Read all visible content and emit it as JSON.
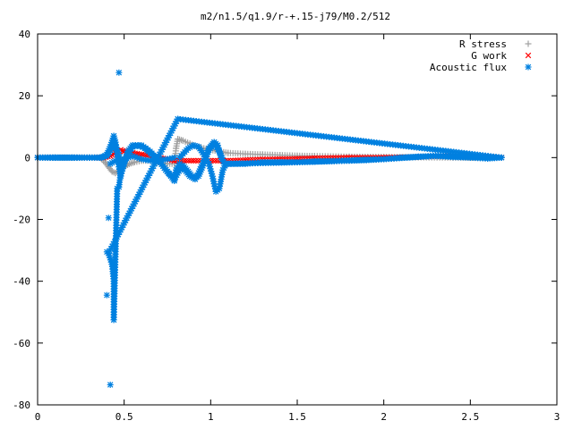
{
  "chart_data": {
    "type": "scatter",
    "title": "m2/n1.5/q1.9/r-+.15-j79/M0.2/512",
    "xlabel": "",
    "ylabel": "",
    "xlim": [
      0,
      3
    ],
    "ylim": [
      -80,
      40
    ],
    "x_ticks": [
      "0",
      "0.5",
      "1",
      "1.5",
      "2",
      "2.5",
      "3"
    ],
    "y_ticks": [
      "40",
      "20",
      "0",
      "-20",
      "-40",
      "-60",
      "-80"
    ],
    "legend_position": "top-right",
    "grid": false,
    "series": [
      {
        "name": "R stress",
        "color": "#a0a0a0",
        "marker": "plus",
        "points": [
          [
            0.0,
            0
          ],
          [
            0.1,
            0
          ],
          [
            0.2,
            0
          ],
          [
            0.3,
            0
          ],
          [
            0.36,
            0
          ],
          [
            0.39,
            -1.5
          ],
          [
            0.41,
            -3
          ],
          [
            0.43,
            -4.5
          ],
          [
            0.45,
            -5
          ],
          [
            0.48,
            -4
          ],
          [
            0.5,
            -3
          ],
          [
            0.53,
            -2
          ],
          [
            0.56,
            -1.5
          ],
          [
            0.6,
            -1
          ],
          [
            0.65,
            -1
          ],
          [
            0.7,
            -1.5
          ],
          [
            0.75,
            -2
          ],
          [
            0.79,
            -2
          ],
          [
            0.8,
            3
          ],
          [
            0.81,
            6
          ],
          [
            0.84,
            5.5
          ],
          [
            0.88,
            4.5
          ],
          [
            0.92,
            3.5
          ],
          [
            0.96,
            3
          ],
          [
            1.0,
            2.5
          ],
          [
            1.05,
            2
          ],
          [
            1.1,
            1.5
          ],
          [
            1.2,
            1.2
          ],
          [
            1.3,
            1
          ],
          [
            1.4,
            0.8
          ],
          [
            1.5,
            0.6
          ],
          [
            1.6,
            0.5
          ],
          [
            1.8,
            0.3
          ],
          [
            2.0,
            0.2
          ],
          [
            2.2,
            0.1
          ],
          [
            2.4,
            0
          ],
          [
            2.6,
            0
          ],
          [
            2.68,
            0
          ]
        ]
      },
      {
        "name": "G work",
        "color": "#ff0000",
        "marker": "cross",
        "points": [
          [
            0.0,
            0
          ],
          [
            0.1,
            0
          ],
          [
            0.2,
            0
          ],
          [
            0.3,
            0
          ],
          [
            0.38,
            0
          ],
          [
            0.42,
            0.5
          ],
          [
            0.45,
            1.5
          ],
          [
            0.48,
            2.5
          ],
          [
            0.5,
            2
          ],
          [
            0.55,
            1.5
          ],
          [
            0.6,
            1
          ],
          [
            0.65,
            0.5
          ],
          [
            0.7,
            0
          ],
          [
            0.75,
            -0.5
          ],
          [
            0.79,
            -1
          ],
          [
            0.82,
            -1
          ],
          [
            0.9,
            -1
          ],
          [
            1.0,
            -1
          ],
          [
            1.1,
            -1
          ],
          [
            1.2,
            -0.8
          ],
          [
            1.3,
            -0.6
          ],
          [
            1.4,
            -0.5
          ],
          [
            1.5,
            -0.4
          ],
          [
            1.6,
            -0.2
          ],
          [
            1.8,
            0
          ],
          [
            2.0,
            0
          ],
          [
            2.2,
            0.2
          ],
          [
            2.3,
            0.5
          ],
          [
            2.4,
            0.5
          ],
          [
            2.5,
            0.3
          ],
          [
            2.6,
            0.2
          ],
          [
            2.68,
            0
          ]
        ]
      },
      {
        "name": "Acoustic flux",
        "color": "#0080e0",
        "marker": "star",
        "points": [
          [
            0.0,
            0
          ],
          [
            0.1,
            0
          ],
          [
            0.2,
            0
          ],
          [
            0.3,
            0
          ],
          [
            0.37,
            0
          ],
          [
            0.4,
            1
          ],
          [
            0.42,
            3.5
          ],
          [
            0.44,
            7
          ],
          [
            0.45,
            5
          ],
          [
            0.46,
            1
          ],
          [
            0.47,
            -3
          ],
          [
            0.48,
            -6
          ],
          [
            0.5,
            -2
          ],
          [
            0.52,
            2
          ],
          [
            0.55,
            4
          ],
          [
            0.58,
            4
          ],
          [
            0.62,
            3
          ],
          [
            0.66,
            1
          ],
          [
            0.7,
            -1
          ],
          [
            0.74,
            -4
          ],
          [
            0.77,
            -6
          ],
          [
            0.79,
            -7.5
          ],
          [
            0.8,
            -4
          ],
          [
            0.82,
            -2
          ],
          [
            0.85,
            -4
          ],
          [
            0.88,
            -6
          ],
          [
            0.91,
            -7
          ],
          [
            0.93,
            -5
          ],
          [
            0.96,
            -1
          ],
          [
            0.99,
            3
          ],
          [
            1.02,
            5
          ],
          [
            1.04,
            4
          ],
          [
            1.06,
            0
          ],
          [
            1.08,
            -2
          ],
          [
            1.1,
            -2
          ],
          [
            1.2,
            -2
          ],
          [
            1.3,
            -1.5
          ],
          [
            1.4,
            -1.5
          ],
          [
            1.5,
            -1.5
          ],
          [
            1.6,
            -1.3
          ],
          [
            1.7,
            -1.2
          ],
          [
            1.8,
            -1
          ],
          [
            1.9,
            -0.8
          ],
          [
            2.0,
            -0.5
          ],
          [
            2.1,
            0
          ],
          [
            2.2,
            0.3
          ],
          [
            2.3,
            0.5
          ],
          [
            2.4,
            0.2
          ],
          [
            2.5,
            0
          ],
          [
            2.6,
            -0.3
          ],
          [
            2.68,
            0
          ],
          [
            0.47,
            27.5
          ],
          [
            0.81,
            12.5
          ],
          [
            0.41,
            -19.5
          ],
          [
            0.4,
            -30.5
          ],
          [
            0.41,
            -31
          ],
          [
            0.43,
            -34.5
          ],
          [
            0.44,
            -40
          ],
          [
            0.4,
            -44.5
          ],
          [
            0.44,
            -52.5
          ],
          [
            0.42,
            -73.5
          ],
          [
            0.46,
            -10
          ],
          [
            0.47,
            -9.5
          ],
          [
            0.48,
            -5
          ]
        ],
        "dense_curves": [
          [
            [
              0.0,
              0
            ],
            [
              0.36,
              0
            ],
            [
              0.4,
              0.5
            ],
            [
              0.43,
              3
            ],
            [
              0.45,
              4
            ],
            [
              0.47,
              1
            ],
            [
              0.49,
              -3
            ],
            [
              0.51,
              0
            ],
            [
              0.55,
              3.5
            ],
            [
              0.6,
              4
            ],
            [
              0.65,
              2
            ],
            [
              0.7,
              -1
            ],
            [
              0.75,
              -4.5
            ],
            [
              0.79,
              -7
            ],
            [
              0.81,
              -5
            ],
            [
              0.84,
              -2.5
            ],
            [
              0.87,
              -4.5
            ],
            [
              0.9,
              -6.5
            ],
            [
              0.93,
              -6
            ],
            [
              0.96,
              -2
            ],
            [
              0.99,
              2.5
            ],
            [
              1.02,
              4.5
            ],
            [
              1.05,
              2
            ],
            [
              1.08,
              -2
            ],
            [
              1.12,
              -2
            ],
            [
              1.5,
              -1.5
            ],
            [
              2.0,
              -0.5
            ],
            [
              2.3,
              0.6
            ],
            [
              2.5,
              0.1
            ],
            [
              2.68,
              0
            ]
          ],
          [
            [
              0.82,
              0
            ],
            [
              0.87,
              3
            ],
            [
              0.9,
              4
            ],
            [
              0.93,
              3.5
            ],
            [
              0.96,
              1
            ],
            [
              0.99,
              -2
            ],
            [
              1.01,
              -6
            ],
            [
              1.03,
              -11
            ],
            [
              1.05,
              -10
            ],
            [
              1.07,
              -4
            ],
            [
              1.09,
              -2
            ]
          ],
          [
            [
              0.42,
              -2
            ],
            [
              0.45,
              -1
            ],
            [
              0.5,
              -0.5
            ],
            [
              0.55,
              0.5
            ],
            [
              0.6,
              -0.5
            ],
            [
              0.65,
              -1
            ],
            [
              0.7,
              -0.8
            ],
            [
              0.75,
              -0.5
            ],
            [
              0.79,
              0
            ]
          ]
        ]
      }
    ]
  }
}
